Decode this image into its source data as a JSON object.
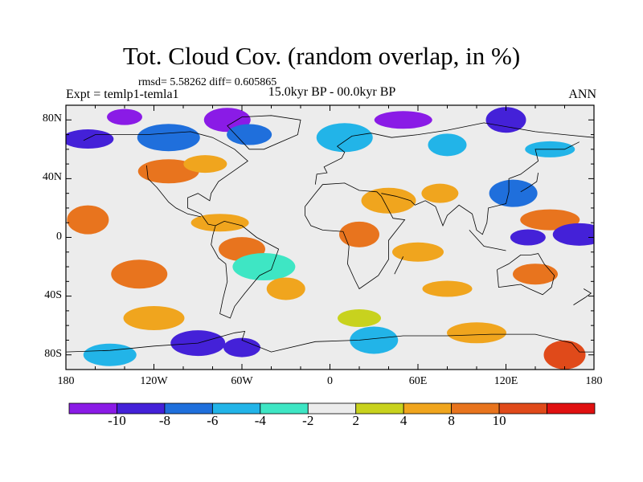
{
  "title": "Tot. Cloud Cov. (random overlap, in %)",
  "stats": "rmsd= 5.58262 diff= 0.605865",
  "experiment": "Expt = temlp1-temla1",
  "period": "15.0kyr BP - 00.0kyr BP",
  "season": "ANN",
  "map": {
    "lon_ticks": [
      "180",
      "120W",
      "60W",
      "0",
      "60E",
      "120E",
      "180"
    ],
    "lat_ticks": [
      "80N",
      "40N",
      "0",
      "40S",
      "80S"
    ],
    "lon_range": [
      -180,
      180
    ],
    "lat_range": [
      -90,
      90
    ],
    "land_color": "#000000"
  },
  "colorbar": {
    "labels": [
      "-10",
      "-8",
      "-6",
      "-4",
      "-2",
      "2",
      "4",
      "8",
      "10"
    ],
    "colors": [
      "#8a1be6",
      "#4421d8",
      "#1f6fdc",
      "#22b4e8",
      "#3ee6c4",
      "#ececec",
      "#c8d21e",
      "#f0a51e",
      "#e8741e",
      "#e04a1a",
      "#e01010"
    ]
  },
  "chart_data": {
    "type": "heatmap",
    "title": "Tot. Cloud Cov. (random overlap, in %)",
    "xlabel": "",
    "ylabel": "",
    "xlim": [
      -180,
      180
    ],
    "ylim": [
      -90,
      90
    ],
    "levels": [
      -10,
      -8,
      -6,
      -4,
      -2,
      2,
      4,
      8,
      10
    ],
    "regions": [
      {
        "lon": -140,
        "lat": 82,
        "value": -11
      },
      {
        "lon": -70,
        "lat": 80,
        "value": -11
      },
      {
        "lon": 50,
        "lat": 80,
        "value": -11
      },
      {
        "lon": 120,
        "lat": 80,
        "value": -10
      },
      {
        "lon": -165,
        "lat": 67,
        "value": -9
      },
      {
        "lon": -110,
        "lat": 68,
        "value": -7
      },
      {
        "lon": -55,
        "lat": 70,
        "value": -7
      },
      {
        "lon": 10,
        "lat": 68,
        "value": -6
      },
      {
        "lon": 80,
        "lat": 63,
        "value": -5
      },
      {
        "lon": 150,
        "lat": 60,
        "value": -5
      },
      {
        "lon": -110,
        "lat": 45,
        "value": 9
      },
      {
        "lon": -85,
        "lat": 50,
        "value": 7
      },
      {
        "lon": 40,
        "lat": 25,
        "value": 6
      },
      {
        "lon": 75,
        "lat": 30,
        "value": 7
      },
      {
        "lon": 125,
        "lat": 30,
        "value": -7
      },
      {
        "lon": 150,
        "lat": 12,
        "value": 9
      },
      {
        "lon": -165,
        "lat": 12,
        "value": 8
      },
      {
        "lon": 170,
        "lat": 2,
        "value": -9
      },
      {
        "lon": 135,
        "lat": 0,
        "value": -9
      },
      {
        "lon": -60,
        "lat": -8,
        "value": 9
      },
      {
        "lon": -75,
        "lat": 10,
        "value": 6
      },
      {
        "lon": 20,
        "lat": 2,
        "value": 9
      },
      {
        "lon": 60,
        "lat": -10,
        "value": 5
      },
      {
        "lon": -45,
        "lat": -20,
        "value": -4
      },
      {
        "lon": 140,
        "lat": -25,
        "value": 8
      },
      {
        "lon": -130,
        "lat": -25,
        "value": 8
      },
      {
        "lon": -30,
        "lat": -35,
        "value": 5
      },
      {
        "lon": 80,
        "lat": -35,
        "value": 4
      },
      {
        "lon": -120,
        "lat": -55,
        "value": 4
      },
      {
        "lon": 20,
        "lat": -55,
        "value": 3
      },
      {
        "lon": -90,
        "lat": -72,
        "value": -9
      },
      {
        "lon": -60,
        "lat": -75,
        "value": -10
      },
      {
        "lon": 30,
        "lat": -70,
        "value": -5
      },
      {
        "lon": 100,
        "lat": -65,
        "value": 6
      },
      {
        "lon": 160,
        "lat": -80,
        "value": 11
      },
      {
        "lon": -150,
        "lat": -80,
        "value": -5
      }
    ]
  }
}
